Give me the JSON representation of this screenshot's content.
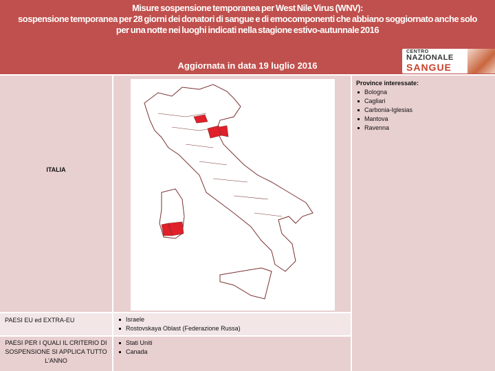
{
  "header": {
    "title_line1": "Misure sospensione temporanea per West Nile Virus (WNV):",
    "title_line2": "sospensione temporanea per 28 giorni dei donatori  di sangue e di emocomponenti che abbiano soggiornato anche solo",
    "title_line3": "per una notte nei luoghi  indicati nella stagione estivo-autunnale 2016",
    "updated": "Aggiornata in data 19 luglio 2016",
    "logo": {
      "line1": "CENTRO",
      "line2": "NAZIONALE",
      "line3": "SANGUE"
    },
    "color": "#c0504d"
  },
  "table": {
    "rows": [
      {
        "label": "ITALIA",
        "items": []
      },
      {
        "label": "PAESI EU  ed EXTRA-EU",
        "items": [
          "Israele",
          "Rostovskaya Oblast (Federazione Russa)"
        ]
      },
      {
        "label": "PAESI PER I QUALI IL CRITERIO DI SOSPENSIONE SI APPLICA TUTTO L'ANNO",
        "items": [
          "Stati Uniti",
          "Canada"
        ]
      }
    ],
    "provinces": {
      "title": "Province interessate:",
      "items": [
        "Bologna",
        "Cagliari",
        "Carbonia-Iglesias",
        "Mantova",
        "Ravenna"
      ]
    }
  }
}
